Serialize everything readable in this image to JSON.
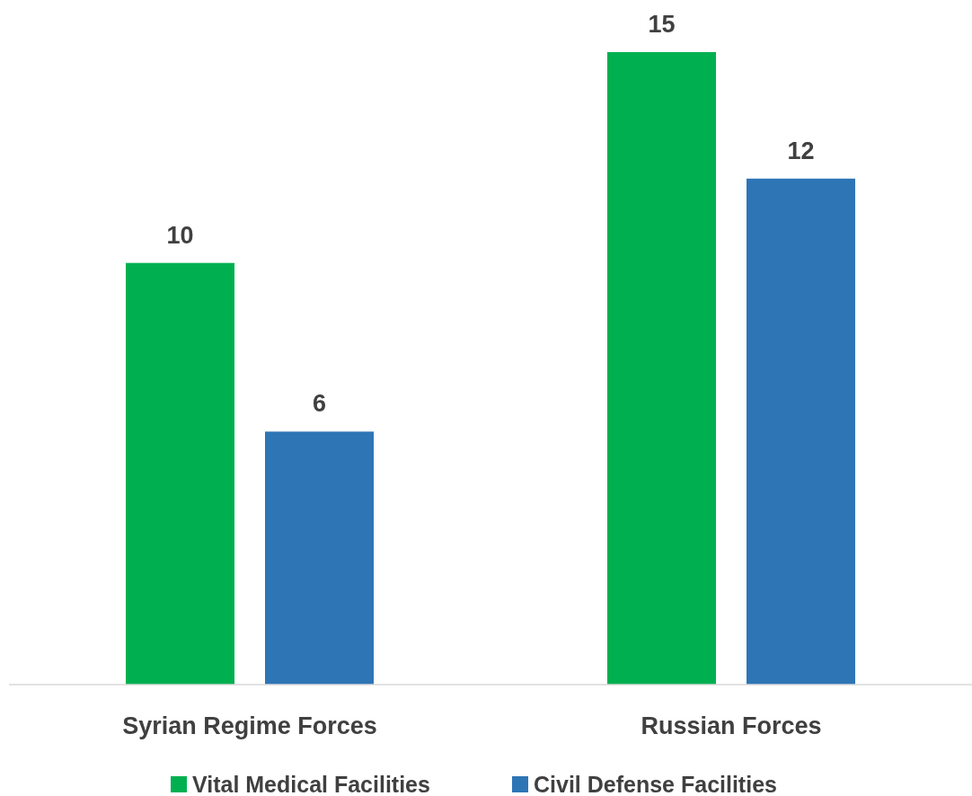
{
  "chart_data": {
    "type": "bar",
    "categories": [
      "Syrian Regime Forces",
      "Russian Forces"
    ],
    "series": [
      {
        "name": "Vital Medical Facilities",
        "color": "#00b050",
        "values": [
          10,
          15
        ]
      },
      {
        "name": "Civil Defense Facilities",
        "color": "#2e75b6",
        "values": [
          6,
          12
        ]
      }
    ],
    "ylim": [
      0,
      15
    ],
    "data_labels": true,
    "legend": "bottom"
  }
}
